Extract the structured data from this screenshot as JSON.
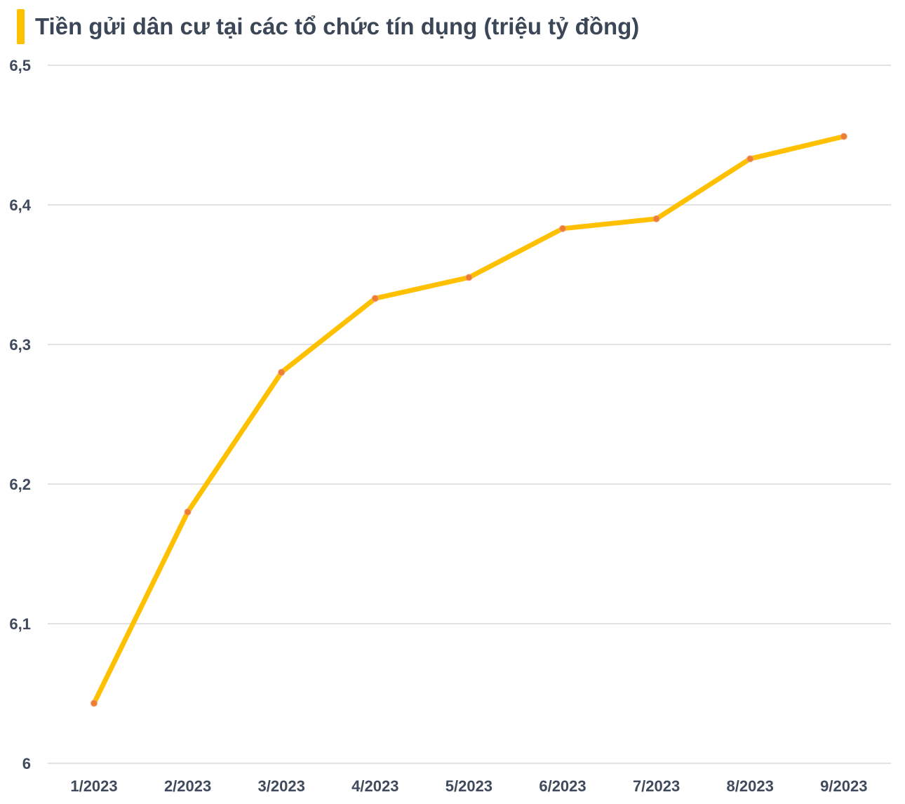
{
  "header": {
    "title": "Tiền gửi dân cư tại các tổ chức tín dụng (triệu tỷ đồng)",
    "accent_color": "#FFC000"
  },
  "chart_data": {
    "type": "line",
    "title": "Tiền gửi dân cư tại các tổ chức tín dụng (triệu tỷ đồng)",
    "xlabel": "",
    "ylabel": "",
    "categories": [
      "1/2023",
      "2/2023",
      "3/2023",
      "4/2023",
      "5/2023",
      "6/2023",
      "7/2023",
      "8/2023",
      "9/2023"
    ],
    "series": [
      {
        "values": [
          6.043,
          6.18,
          6.28,
          6.333,
          6.348,
          6.383,
          6.39,
          6.433,
          6.449
        ]
      }
    ],
    "ylim": [
      6.0,
      6.5
    ],
    "yticks": [
      6.0,
      6.1,
      6.2,
      6.3,
      6.4,
      6.5
    ],
    "ytick_labels": [
      "6",
      "6,1",
      "6,2",
      "6,3",
      "6,4",
      "6,5"
    ],
    "grid": true,
    "legend": "none",
    "line_color": "#FFC000",
    "marker_color": "#ED7D31",
    "grid_color": "#D9D9D9"
  }
}
